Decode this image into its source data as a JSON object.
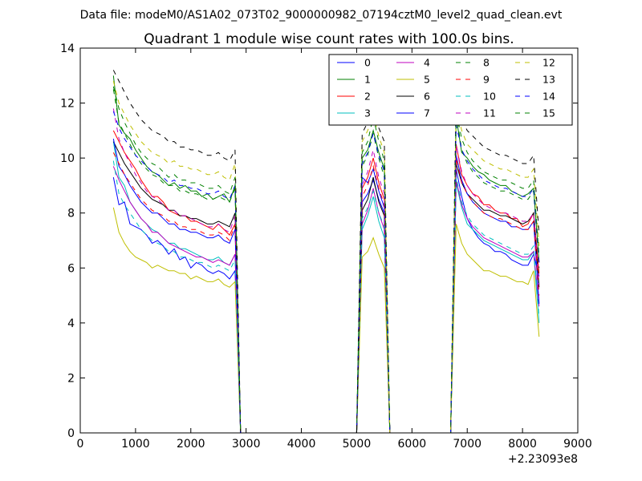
{
  "chart_data": {
    "type": "line",
    "suptitle": "Data file: modeM0/AS1A02_073T02_9000000982_07194cztM0_level2_quad_clean.evt",
    "title": "Quadrant 1 module wise count rates with 100.0s bins.",
    "xlabel": "",
    "ylabel": "",
    "xlim": [
      0,
      9000
    ],
    "ylim": [
      0,
      14
    ],
    "x_ticks": [
      0,
      1000,
      2000,
      3000,
      4000,
      5000,
      6000,
      7000,
      8000,
      9000
    ],
    "x_tick_labels": [
      "0",
      "1000",
      "2000",
      "3000",
      "4000",
      "5000",
      "6000",
      "7000",
      "8000",
      "9000"
    ],
    "y_ticks": [
      0,
      2,
      4,
      6,
      8,
      10,
      12,
      14
    ],
    "y_tick_labels": [
      "0",
      "2",
      "4",
      "6",
      "8",
      "10",
      "12",
      "14"
    ],
    "x_offset_label": "+2.23093e8",
    "legend_position": "top-right",
    "legend_columns": 4,
    "bin_width_s": 100,
    "segments": [
      {
        "start": 600,
        "n": 23
      },
      {
        "start": 5100,
        "n": 5
      },
      {
        "start": 6800,
        "n": 16
      }
    ],
    "series": [
      {
        "name": "0",
        "color": "#0000ff",
        "dash": "solid",
        "seg1": [
          9.3,
          8.3,
          8.4,
          7.6,
          7.5,
          7.4,
          7.2,
          6.9,
          7.0,
          6.8,
          6.5,
          6.7,
          6.3,
          6.4,
          6.0,
          6.2,
          6.1,
          5.9,
          5.8,
          5.9,
          5.8,
          5.6,
          5.9
        ],
        "seg2": [
          8.4,
          8.7,
          9.2,
          8.5,
          8.0
        ],
        "seg3": [
          9.6,
          8.6,
          7.8,
          7.4,
          7.1,
          6.9,
          6.8,
          6.6,
          6.6,
          6.5,
          6.3,
          6.2,
          6.1,
          6.1,
          6.5,
          5.7
        ]
      },
      {
        "name": "1",
        "color": "#008000",
        "dash": "solid",
        "seg1": [
          13.0,
          11.2,
          10.9,
          10.7,
          10.3,
          10.0,
          9.7,
          9.5,
          9.4,
          9.2,
          9.0,
          9.1,
          8.9,
          9.0,
          8.8,
          8.8,
          8.6,
          8.7,
          8.5,
          8.6,
          8.7,
          8.4,
          9.0
        ],
        "seg2": [
          10.0,
          10.3,
          11.0,
          10.2,
          9.6
        ],
        "seg3": [
          11.5,
          10.2,
          10.0,
          9.7,
          9.5,
          9.4,
          9.2,
          9.1,
          9.0,
          9.0,
          8.8,
          8.7,
          8.6,
          8.7,
          8.9,
          6.2
        ]
      },
      {
        "name": "2",
        "color": "#ff0000",
        "dash": "solid",
        "seg1": [
          11.0,
          10.6,
          10.2,
          9.9,
          9.6,
          9.2,
          8.9,
          8.6,
          8.6,
          8.4,
          8.1,
          8.0,
          7.9,
          7.9,
          7.7,
          7.7,
          7.6,
          7.5,
          7.4,
          7.6,
          7.4,
          7.2,
          7.6
        ],
        "seg2": [
          8.9,
          9.3,
          10.0,
          9.1,
          8.5
        ],
        "seg3": [
          10.5,
          9.4,
          9.0,
          8.7,
          8.6,
          8.3,
          8.3,
          8.1,
          8.0,
          8.0,
          7.8,
          7.8,
          7.5,
          7.6,
          8.0,
          5.8
        ]
      },
      {
        "name": "3",
        "color": "#00bfbf",
        "dash": "solid",
        "seg1": [
          10.6,
          9.3,
          9.0,
          8.4,
          8.1,
          7.8,
          7.6,
          7.4,
          7.3,
          7.1,
          6.9,
          6.9,
          6.7,
          6.7,
          6.6,
          6.5,
          6.4,
          6.3,
          6.3,
          6.4,
          6.2,
          6.1,
          6.5
        ],
        "seg2": [
          7.4,
          7.9,
          8.6,
          7.7,
          7.1
        ],
        "seg3": [
          9.1,
          8.2,
          7.6,
          7.4,
          7.2,
          7.0,
          6.9,
          6.8,
          6.7,
          6.6,
          6.5,
          6.4,
          6.3,
          6.3,
          6.6,
          4.0
        ]
      },
      {
        "name": "4",
        "color": "#bf00bf",
        "dash": "solid",
        "seg1": [
          9.7,
          9.2,
          8.8,
          8.4,
          8.1,
          7.8,
          7.6,
          7.3,
          7.3,
          7.1,
          6.9,
          6.8,
          6.7,
          6.6,
          6.5,
          6.4,
          6.4,
          6.3,
          6.2,
          6.3,
          6.2,
          6.1,
          6.5
        ],
        "seg2": [
          7.6,
          8.1,
          8.9,
          8.0,
          7.4
        ],
        "seg3": [
          9.2,
          8.3,
          7.8,
          7.5,
          7.3,
          7.1,
          7.0,
          6.9,
          6.8,
          6.7,
          6.6,
          6.5,
          6.4,
          6.4,
          6.6,
          4.6
        ]
      },
      {
        "name": "5",
        "color": "#bfbf00",
        "dash": "solid",
        "seg1": [
          8.2,
          7.3,
          6.9,
          6.6,
          6.4,
          6.3,
          6.2,
          6.0,
          6.1,
          6.0,
          5.9,
          5.9,
          5.8,
          5.8,
          5.6,
          5.7,
          5.6,
          5.5,
          5.5,
          5.6,
          5.4,
          5.3,
          5.5
        ],
        "seg2": [
          6.4,
          6.6,
          7.1,
          6.5,
          6.0
        ],
        "seg3": [
          7.6,
          6.9,
          6.5,
          6.3,
          6.1,
          5.9,
          5.9,
          5.8,
          5.7,
          5.7,
          5.6,
          5.5,
          5.5,
          5.4,
          5.9,
          3.5
        ]
      },
      {
        "name": "6",
        "color": "#000000",
        "dash": "solid",
        "seg1": [
          10.6,
          10.2,
          9.8,
          9.5,
          9.2,
          8.9,
          8.7,
          8.5,
          8.4,
          8.3,
          8.1,
          8.1,
          7.9,
          7.9,
          7.8,
          7.8,
          7.7,
          7.6,
          7.6,
          7.7,
          7.6,
          7.5,
          8.0
        ],
        "seg2": [
          8.1,
          8.5,
          9.3,
          8.4,
          7.9
        ],
        "seg3": [
          9.8,
          9.1,
          8.7,
          8.5,
          8.3,
          8.1,
          8.1,
          8.0,
          7.9,
          7.9,
          7.8,
          7.7,
          7.6,
          7.7,
          8.0,
          5.3
        ]
      },
      {
        "name": "7",
        "color": "#0000ff",
        "dash": "solid",
        "seg1": [
          10.7,
          9.7,
          9.4,
          9.0,
          8.7,
          8.4,
          8.2,
          8.0,
          8.0,
          7.8,
          7.6,
          7.6,
          7.4,
          7.4,
          7.3,
          7.3,
          7.2,
          7.1,
          7.1,
          7.2,
          7.0,
          6.9,
          7.4
        ],
        "seg2": [
          9.3,
          9.1,
          9.6,
          8.8,
          8.2
        ],
        "seg3": [
          10.1,
          9.2,
          8.7,
          8.4,
          8.2,
          8.0,
          7.9,
          7.8,
          7.7,
          7.7,
          7.5,
          7.5,
          7.4,
          7.4,
          7.7,
          4.7
        ]
      },
      {
        "name": "8",
        "color": "#008000",
        "dash": "dashed",
        "seg1": [
          12.5,
          11.3,
          10.9,
          10.5,
          10.1,
          9.8,
          9.6,
          9.4,
          9.3,
          9.1,
          9.0,
          9.0,
          8.8,
          8.8,
          8.7,
          8.7,
          8.6,
          8.5,
          8.5,
          8.6,
          8.5,
          8.4,
          8.9
        ],
        "seg2": [
          9.7,
          10.1,
          10.9,
          10.0,
          9.3
        ],
        "seg3": [
          11.6,
          10.3,
          9.8,
          9.5,
          9.3,
          9.1,
          9.0,
          8.9,
          8.8,
          8.8,
          8.7,
          8.6,
          8.5,
          8.5,
          8.8,
          6.0
        ]
      },
      {
        "name": "9",
        "color": "#ff0000",
        "dash": "dashed",
        "seg1": [
          10.2,
          9.8,
          9.4,
          9.1,
          8.8,
          8.5,
          8.3,
          8.1,
          8.0,
          7.9,
          7.7,
          7.7,
          7.5,
          7.5,
          7.4,
          7.4,
          7.3,
          7.2,
          7.2,
          7.3,
          7.2,
          7.0,
          7.6
        ],
        "seg2": [
          8.6,
          9.0,
          9.7,
          8.9,
          8.3
        ],
        "seg3": [
          10.0,
          9.1,
          8.7,
          8.4,
          8.2,
          8.0,
          7.9,
          7.8,
          7.8,
          7.7,
          7.6,
          7.5,
          7.4,
          7.4,
          7.7,
          5.0
        ]
      },
      {
        "name": "10",
        "color": "#00bfbf",
        "dash": "dashed",
        "seg1": [
          9.9,
          8.7,
          8.3,
          8.0,
          7.7,
          7.4,
          7.2,
          7.0,
          6.9,
          6.8,
          6.6,
          6.6,
          6.4,
          6.4,
          6.3,
          6.2,
          6.2,
          6.1,
          6.0,
          6.1,
          6.0,
          5.9,
          6.3
        ],
        "seg2": [
          7.8,
          8.2,
          8.8,
          8.0,
          7.5
        ],
        "seg3": [
          9.3,
          8.4,
          7.9,
          7.6,
          7.4,
          7.2,
          7.1,
          7.0,
          6.9,
          6.8,
          6.7,
          6.6,
          6.5,
          6.5,
          6.8,
          4.2
        ]
      },
      {
        "name": "11",
        "color": "#bf00bf",
        "dash": "dashed",
        "seg1": [
          11.8,
          10.7,
          10.2,
          9.8,
          9.4,
          9.1,
          8.8,
          8.6,
          8.5,
          8.3,
          8.1,
          8.1,
          7.9,
          7.9,
          7.8,
          7.7,
          7.6,
          7.5,
          7.5,
          7.6,
          7.4,
          7.3,
          7.9
        ],
        "seg2": [
          9.0,
          9.5,
          10.3,
          9.3,
          8.7
        ],
        "seg3": [
          10.5,
          9.5,
          9.0,
          8.7,
          8.5,
          8.3,
          8.2,
          8.1,
          8.0,
          8.0,
          7.9,
          7.8,
          7.7,
          7.7,
          8.0,
          5.4
        ]
      },
      {
        "name": "12",
        "color": "#bfbf00",
        "dash": "dashed",
        "seg1": [
          12.8,
          12.0,
          11.6,
          11.2,
          10.9,
          10.6,
          10.4,
          10.2,
          10.1,
          10.0,
          9.8,
          9.9,
          9.7,
          9.7,
          9.6,
          9.6,
          9.5,
          9.4,
          9.4,
          9.5,
          9.3,
          9.2,
          9.8
        ],
        "seg2": [
          10.6,
          11.0,
          11.6,
          10.8,
          10.2
        ],
        "seg3": [
          11.9,
          11.0,
          10.5,
          10.3,
          10.1,
          9.9,
          9.8,
          9.7,
          9.6,
          9.6,
          9.5,
          9.4,
          9.3,
          9.3,
          9.6,
          6.8
        ]
      },
      {
        "name": "13",
        "color": "#000000",
        "dash": "dashed",
        "seg1": [
          13.2,
          12.8,
          12.4,
          12.0,
          11.7,
          11.4,
          11.2,
          11.0,
          10.9,
          10.8,
          10.6,
          10.6,
          10.4,
          10.4,
          10.3,
          10.3,
          10.2,
          10.1,
          10.1,
          10.2,
          10.0,
          9.9,
          10.3
        ],
        "seg2": [
          10.9,
          11.3,
          11.7,
          11.1,
          10.6
        ],
        "seg3": [
          12.3,
          11.4,
          11.0,
          10.8,
          10.6,
          10.4,
          10.3,
          10.2,
          10.1,
          10.1,
          10.0,
          9.9,
          9.8,
          9.8,
          10.1,
          7.2
        ]
      },
      {
        "name": "14",
        "color": "#0000ff",
        "dash": "dashed",
        "seg1": [
          11.7,
          11.1,
          10.7,
          10.4,
          10.1,
          9.9,
          9.7,
          9.5,
          9.4,
          9.3,
          9.1,
          9.2,
          9.0,
          9.0,
          8.9,
          8.9,
          8.8,
          8.7,
          8.7,
          8.8,
          8.6,
          8.5,
          9.0
        ],
        "seg2": [
          9.8,
          10.2,
          10.9,
          10.1,
          9.5
        ],
        "seg3": [
          11.2,
          10.3,
          9.9,
          9.6,
          9.4,
          9.2,
          9.1,
          9.0,
          8.9,
          8.9,
          8.8,
          8.7,
          8.6,
          8.6,
          8.9,
          6.2
        ]
      },
      {
        "name": "15",
        "color": "#008000",
        "dash": "dashed",
        "seg1": [
          12.6,
          11.8,
          11.3,
          10.9,
          10.5,
          10.2,
          10.0,
          9.8,
          9.7,
          9.5,
          9.3,
          9.4,
          9.2,
          9.2,
          9.1,
          9.1,
          9.0,
          8.9,
          8.9,
          9.0,
          8.8,
          8.7,
          9.3
        ],
        "seg2": [
          10.2,
          10.6,
          11.5,
          10.6,
          9.9
        ],
        "seg3": [
          11.7,
          10.7,
          10.2,
          9.9,
          9.7,
          9.5,
          9.4,
          9.3,
          9.2,
          9.2,
          9.1,
          9.0,
          8.9,
          8.9,
          9.2,
          6.4
        ]
      }
    ]
  }
}
